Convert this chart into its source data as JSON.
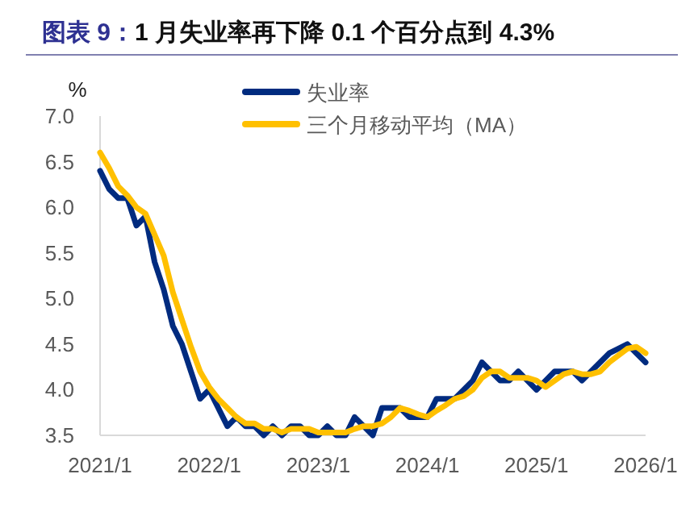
{
  "chart_data": {
    "type": "line",
    "title": "图表 9：1 月失业率再下降 0.1 个百分点到 4.3%",
    "ylabel": "%",
    "series": [
      {
        "name": "失业率",
        "color": "#002b7f",
        "x": [
          "2021-01",
          "2021-02",
          "2021-03",
          "2021-04",
          "2021-05",
          "2021-06",
          "2021-07",
          "2021-08",
          "2021-09",
          "2021-10",
          "2021-11",
          "2021-12",
          "2022-01",
          "2022-02",
          "2022-03",
          "2022-04",
          "2022-05",
          "2022-06",
          "2022-07",
          "2022-08",
          "2022-09",
          "2022-10",
          "2022-11",
          "2022-12",
          "2023-01",
          "2023-02",
          "2023-03",
          "2023-04",
          "2023-05",
          "2023-06",
          "2023-07",
          "2023-08",
          "2023-09",
          "2023-10",
          "2023-11",
          "2023-12",
          "2024-01",
          "2024-02",
          "2024-03",
          "2024-04",
          "2024-05",
          "2024-06",
          "2024-07",
          "2024-08",
          "2024-09",
          "2024-10",
          "2024-11",
          "2024-12",
          "2025-01",
          "2025-02",
          "2025-03",
          "2025-04",
          "2025-05",
          "2025-06",
          "2025-07",
          "2025-08",
          "2025-09",
          "2025-11",
          "2025-12",
          "2026-01"
        ],
        "values": [
          6.4,
          6.2,
          6.1,
          6.1,
          5.8,
          5.9,
          5.4,
          5.1,
          4.7,
          4.5,
          4.2,
          3.9,
          4.0,
          3.8,
          3.6,
          3.7,
          3.6,
          3.6,
          3.5,
          3.6,
          3.5,
          3.6,
          3.6,
          3.5,
          3.5,
          3.6,
          3.5,
          3.5,
          3.7,
          3.6,
          3.5,
          3.8,
          3.8,
          3.8,
          3.7,
          3.7,
          3.7,
          3.9,
          3.9,
          3.9,
          4.0,
          4.1,
          4.3,
          4.2,
          4.1,
          4.1,
          4.2,
          4.1,
          4.0,
          4.1,
          4.2,
          4.2,
          4.2,
          4.1,
          4.2,
          4.3,
          4.4,
          4.5,
          4.4,
          4.3
        ]
      },
      {
        "name": "三个月移动平均（MA）",
        "color": "#ffc000",
        "x": [
          "2021-01",
          "2021-02",
          "2021-03",
          "2021-04",
          "2021-05",
          "2021-06",
          "2021-07",
          "2021-08",
          "2021-09",
          "2021-10",
          "2021-11",
          "2021-12",
          "2022-01",
          "2022-02",
          "2022-03",
          "2022-04",
          "2022-05",
          "2022-06",
          "2022-07",
          "2022-08",
          "2022-09",
          "2022-10",
          "2022-11",
          "2022-12",
          "2023-01",
          "2023-02",
          "2023-03",
          "2023-04",
          "2023-05",
          "2023-06",
          "2023-07",
          "2023-08",
          "2023-09",
          "2023-10",
          "2023-11",
          "2023-12",
          "2024-01",
          "2024-02",
          "2024-03",
          "2024-04",
          "2024-05",
          "2024-06",
          "2024-07",
          "2024-08",
          "2024-09",
          "2024-10",
          "2024-11",
          "2024-12",
          "2025-01",
          "2025-02",
          "2025-03",
          "2025-04",
          "2025-05",
          "2025-06",
          "2025-07",
          "2025-08",
          "2025-09",
          "2025-11",
          "2025-12",
          "2026-01"
        ],
        "values": [
          6.6,
          6.43,
          6.23,
          6.13,
          6.0,
          5.93,
          5.7,
          5.47,
          5.07,
          4.77,
          4.47,
          4.2,
          4.03,
          3.9,
          3.8,
          3.7,
          3.63,
          3.63,
          3.57,
          3.57,
          3.53,
          3.57,
          3.57,
          3.57,
          3.53,
          3.53,
          3.53,
          3.53,
          3.57,
          3.6,
          3.6,
          3.63,
          3.7,
          3.8,
          3.77,
          3.73,
          3.7,
          3.77,
          3.83,
          3.9,
          3.93,
          4.0,
          4.13,
          4.2,
          4.2,
          4.13,
          4.13,
          4.13,
          4.1,
          4.03,
          4.1,
          4.17,
          4.2,
          4.17,
          4.17,
          4.2,
          4.3,
          4.45,
          4.47,
          4.4
        ]
      }
    ],
    "xlim": [
      "2021-01",
      "2026-01"
    ],
    "xticks": [
      {
        "value": "2021-01",
        "label": "2021/1"
      },
      {
        "value": "2022-01",
        "label": "2022/1"
      },
      {
        "value": "2023-01",
        "label": "2023/1"
      },
      {
        "value": "2024-01",
        "label": "2024/1"
      },
      {
        "value": "2025-01",
        "label": "2025/1"
      },
      {
        "value": "2026-01",
        "label": "2026/1"
      }
    ],
    "ylim": [
      3.5,
      7.0
    ],
    "yticks": [
      {
        "value": 3.5,
        "label": "3.5"
      },
      {
        "value": 4.0,
        "label": "4.0"
      },
      {
        "value": 4.5,
        "label": "4.5"
      },
      {
        "value": 5.0,
        "label": "5.0"
      },
      {
        "value": 5.5,
        "label": "5.5"
      },
      {
        "value": 6.0,
        "label": "6.0"
      },
      {
        "value": 6.5,
        "label": "6.5"
      },
      {
        "value": 7.0,
        "label": "7.0"
      }
    ],
    "grid": false,
    "legend": "top",
    "line_style": "solid",
    "marker": "none"
  }
}
